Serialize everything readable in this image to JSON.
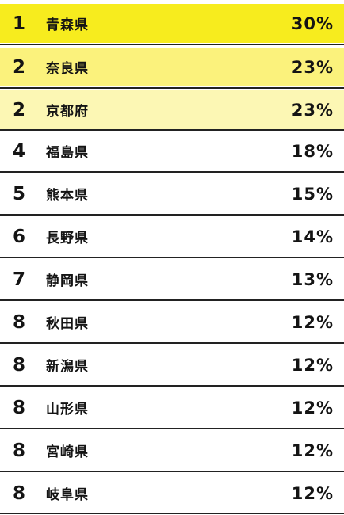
{
  "ranking": {
    "rows": [
      {
        "rank": "1",
        "name": "青森県",
        "value": "30%",
        "highlight": "#f7ec1e"
      },
      {
        "rank": "2",
        "name": "奈良県",
        "value": "23%",
        "highlight": "#fbf27c"
      },
      {
        "rank": "2",
        "name": "京都府",
        "value": "23%",
        "highlight": "#fcf7b4"
      },
      {
        "rank": "4",
        "name": "福島県",
        "value": "18%"
      },
      {
        "rank": "5",
        "name": "熊本県",
        "value": "15%"
      },
      {
        "rank": "6",
        "name": "長野県",
        "value": "14%"
      },
      {
        "rank": "7",
        "name": "静岡県",
        "value": "13%"
      },
      {
        "rank": "8",
        "name": "秋田県",
        "value": "12%"
      },
      {
        "rank": "8",
        "name": "新潟県",
        "value": "12%"
      },
      {
        "rank": "8",
        "name": "山形県",
        "value": "12%"
      },
      {
        "rank": "8",
        "name": "宮崎県",
        "value": "12%"
      },
      {
        "rank": "8",
        "name": "岐阜県",
        "value": "12%"
      }
    ]
  }
}
